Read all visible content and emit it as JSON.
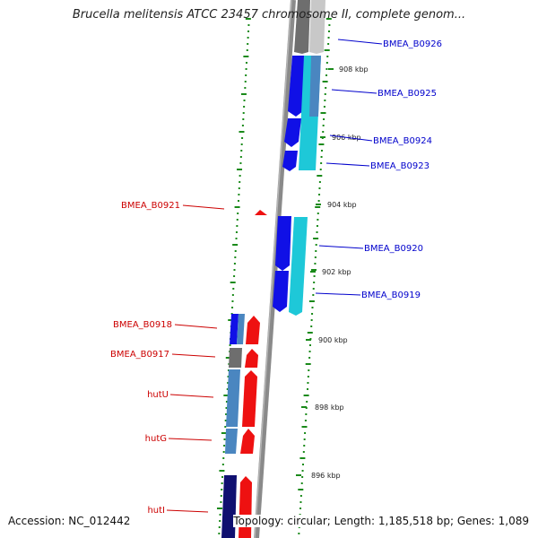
{
  "title": "Brucella melitensis ATCC 23457 chromosome II, complete genom...",
  "footer": {
    "accession": "Accession: NC_012442",
    "summary": "Topology: circular; Length: 1,185,518 bp; Genes: 1,089"
  },
  "scale_labels": [
    "908 kbp",
    "906 kbp",
    "904 kbp",
    "902 kbp",
    "900 kbp",
    "898 kbp",
    "896 kbp"
  ],
  "genes_forward": [
    "BMEA_B0926",
    "BMEA_B0925",
    "BMEA_B0924",
    "BMEA_B0923",
    "BMEA_B0920",
    "BMEA_B0919"
  ],
  "genes_reverse": [
    "BMEA_B0921",
    "BMEA_B0918",
    "BMEA_B0917",
    "hutU",
    "hutG",
    "hutI"
  ],
  "colors": {
    "forward_label": "#0000cc",
    "reverse_label": "#cc0000",
    "cds_blue": "#1010e6",
    "cds_cyan": "#1ec8d8",
    "cds_red": "#ee1111",
    "cds_steel": "#4a86c0",
    "cds_gray": "#6e6e6e",
    "cds_navy": "#101070",
    "backbone": "#8a8a8a",
    "gc_skew": "#1a8a1a"
  }
}
